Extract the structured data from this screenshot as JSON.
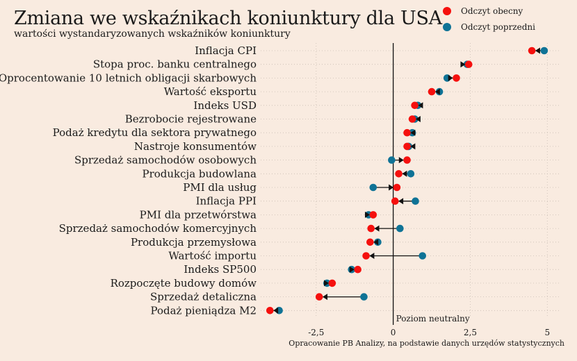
{
  "chart_data": {
    "type": "scatter",
    "title": "Zmiana we wskaźnikach koniunktury dla USA",
    "subtitle": "wartości wystandaryzowanych wskaźników koniunktury",
    "source": "Opracowanie PB Analizy, na podstawie danych urzędów statystycznych",
    "neutral_label": "Poziom neutralny",
    "xlim": [
      -4.3,
      5.4
    ],
    "xticks": [
      -2.5,
      0,
      2.5,
      5
    ],
    "xtick_labels": [
      "-2,5",
      "0",
      "2,5",
      "5"
    ],
    "grid": true,
    "legend_position": "top-right",
    "series": [
      {
        "name": "Odczyt obecny",
        "color": "#f5100e"
      },
      {
        "name": "Odczyt poprzedni",
        "color": "#0f7396"
      }
    ],
    "categories": [
      "Inflacja CPI",
      "Stopa proc. banku centralnego",
      "Oprocentowanie 10 letnich obligacji skarbowych",
      "Wartość eksportu",
      "Indeks USD",
      "Bezrobocie rejestrowane",
      "Podaż kredytu dla sektora prywatnego",
      "Nastroje konsumentów",
      "Sprzedaż samochodów osobowych",
      "Produkcja budowlana",
      "PMI dla usług",
      "Inflacja PPI",
      "PMI dla przetwórstwa",
      "Sprzedaż samochodów komercyjnych",
      "Produkcja przemysłowa",
      "Wartość importu",
      "Indeks SP500",
      "Rozpoczęte budowy domów",
      "Sprzedaż detaliczna",
      "Podaż pieniądza M2"
    ],
    "current": [
      4.5,
      2.45,
      2.05,
      1.25,
      0.7,
      0.62,
      0.45,
      0.45,
      0.45,
      0.18,
      0.12,
      0.06,
      -0.65,
      -0.72,
      -0.75,
      -0.88,
      -1.15,
      -1.98,
      -2.4,
      -4.0
    ],
    "previous": [
      4.9,
      2.4,
      1.75,
      1.5,
      0.8,
      0.7,
      0.62,
      0.5,
      -0.05,
      0.57,
      -0.65,
      0.72,
      -0.8,
      0.22,
      -0.5,
      0.95,
      -1.35,
      -2.15,
      -0.95,
      -3.7
    ]
  }
}
